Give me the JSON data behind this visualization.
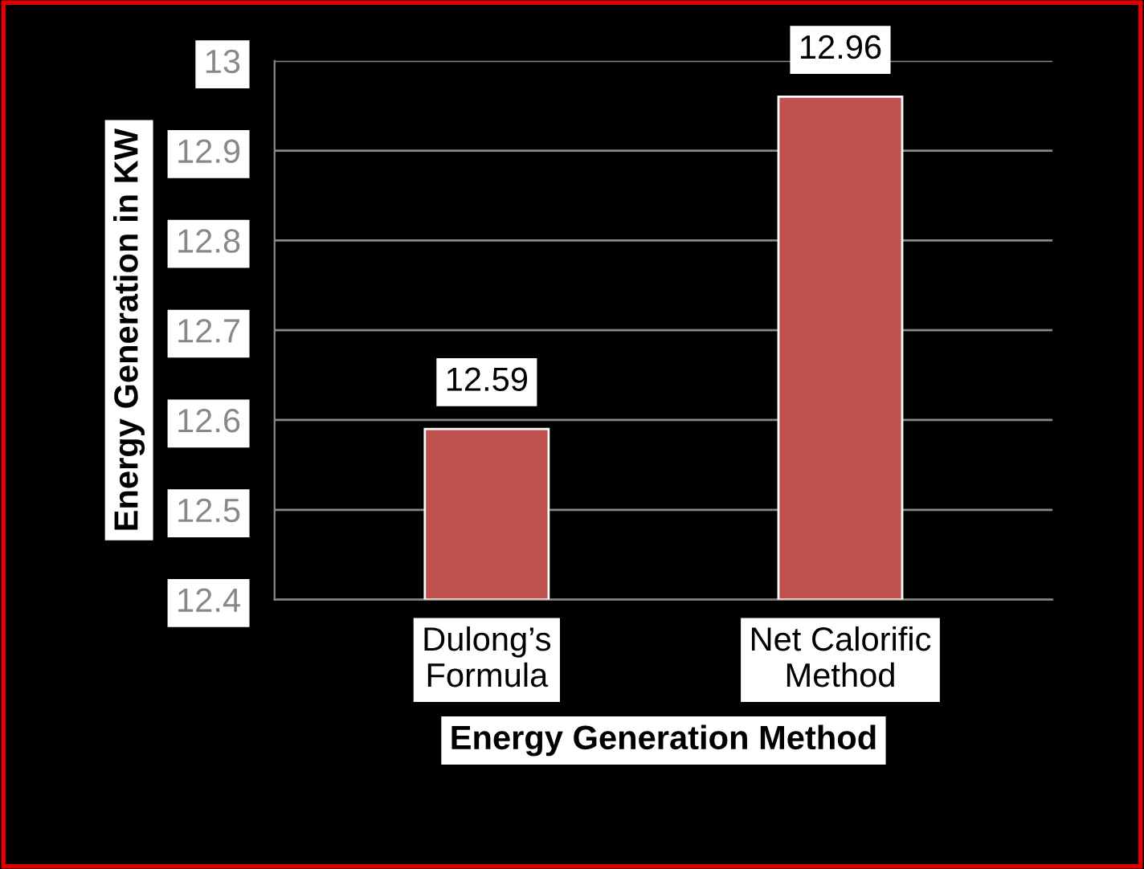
{
  "chart_data": {
    "type": "bar",
    "xlabel": "Energy Generation Method",
    "ylabel": "Energy Generation in KW",
    "categories": [
      "Dulong’s\nFormula",
      "Net Calorific\nMethod"
    ],
    "values": [
      12.59,
      12.96
    ],
    "color": "#c0504d",
    "ylim": [
      12.4,
      13
    ],
    "yticks": [
      12.4,
      12.5,
      12.6,
      12.7,
      12.8,
      12.9,
      13
    ],
    "grid": "y",
    "data_labels": true
  }
}
